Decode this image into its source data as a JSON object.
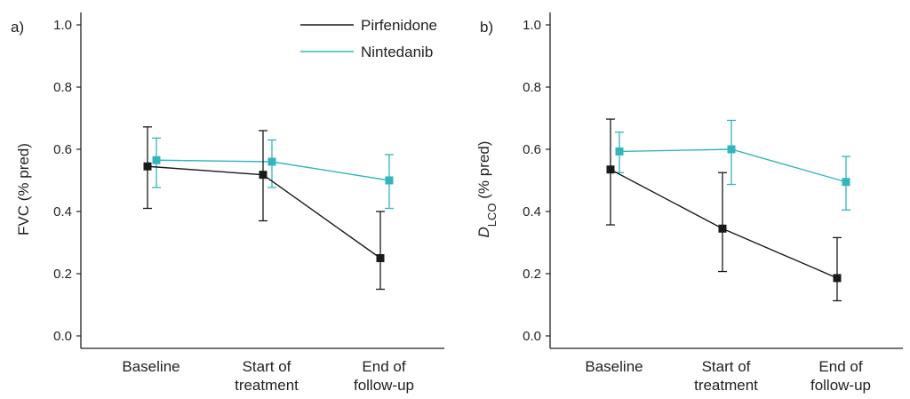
{
  "chart_data": [
    {
      "type": "line",
      "panel_label": "a)",
      "ylabel": "FVC (% pred)",
      "ylabel_parts": [],
      "categories": [
        "Baseline",
        "Start of\ntreatment",
        "End of\nfollow-up"
      ],
      "ylim": [
        0.0,
        1.0
      ],
      "yticks": [
        "0.0",
        "0.2",
        "0.4",
        "0.6",
        "0.8",
        "1.0"
      ],
      "yticks_values": [
        0.0,
        0.2,
        0.4,
        0.6,
        0.8,
        1.0
      ],
      "grid": false,
      "series": [
        {
          "name": "Pirfenidone",
          "color": "#1a1a1a",
          "values": [
            0.545,
            0.518,
            0.25
          ],
          "err_low": [
            0.41,
            0.37,
            0.15
          ],
          "err_high": [
            0.672,
            0.66,
            0.4
          ]
        },
        {
          "name": "Nintedanib",
          "color": "#33b5bd",
          "values": [
            0.565,
            0.56,
            0.5
          ],
          "err_low": [
            0.477,
            0.477,
            0.41
          ],
          "err_high": [
            0.636,
            0.63,
            0.583
          ]
        }
      ]
    },
    {
      "type": "line",
      "panel_label": "b)",
      "ylabel": "",
      "ylabel_parts": [
        "D",
        "LCO",
        " (% pred)"
      ],
      "categories": [
        "Baseline",
        "Start of\ntreatment",
        "End of\nfollow-up"
      ],
      "ylim": [
        0.0,
        1.0
      ],
      "yticks": [
        "0.0",
        "0.2",
        "0.4",
        "0.6",
        "0.8",
        "1.0"
      ],
      "yticks_values": [
        0.0,
        0.2,
        0.4,
        0.6,
        0.8,
        1.0
      ],
      "grid": false,
      "series": [
        {
          "name": "Pirfenidone",
          "color": "#1a1a1a",
          "values": [
            0.535,
            0.345,
            0.186
          ],
          "err_low": [
            0.357,
            0.207,
            0.113
          ],
          "err_high": [
            0.697,
            0.525,
            0.316
          ]
        },
        {
          "name": "Nintedanib",
          "color": "#33b5bd",
          "values": [
            0.593,
            0.6,
            0.495
          ],
          "err_low": [
            0.525,
            0.487,
            0.405
          ],
          "err_high": [
            0.655,
            0.693,
            0.577
          ]
        }
      ]
    }
  ],
  "legend": {
    "placement": "top-right of panel a",
    "items": [
      {
        "label": "Pirfenidone",
        "color": "#1a1a1a"
      },
      {
        "label": "Nintedanib",
        "color": "#33b5bd"
      }
    ]
  }
}
